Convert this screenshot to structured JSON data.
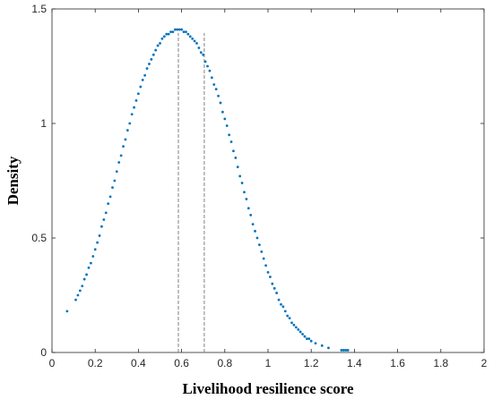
{
  "chart_data": {
    "type": "scatter",
    "title": "",
    "xlabel": "Livelihood resilience score",
    "ylabel": "Density",
    "xlim": [
      0,
      2
    ],
    "ylim": [
      0,
      1.5
    ],
    "xticks": [
      0,
      0.2,
      0.4,
      0.6,
      0.8,
      1,
      1.2,
      1.4,
      1.6,
      1.8,
      2
    ],
    "xtick_labels": [
      "0",
      "0.2",
      "0.4",
      "0.6",
      "0.8",
      "1",
      "1.2",
      "1.4",
      "1.6",
      "1.8",
      "2"
    ],
    "yticks": [
      0,
      0.5,
      1,
      1.5
    ],
    "ytick_labels": [
      "0",
      "0.5",
      "1",
      "1.5"
    ],
    "grid": false,
    "legend": "none",
    "marker_color": "#0072BD",
    "reference_lines": [
      {
        "x": 0.585,
        "style": "dashed",
        "color": "#808080"
      },
      {
        "x": 0.705,
        "style": "dashed",
        "color": "#808080"
      }
    ],
    "series": [
      {
        "x": [
          0.07,
          0.11,
          0.12,
          0.13,
          0.14,
          0.15,
          0.16,
          0.17,
          0.18,
          0.19,
          0.2,
          0.21,
          0.22,
          0.23,
          0.24,
          0.25,
          0.26,
          0.27,
          0.28,
          0.29,
          0.3,
          0.31,
          0.32,
          0.33,
          0.34,
          0.35,
          0.36,
          0.37,
          0.38,
          0.39,
          0.4,
          0.41,
          0.42,
          0.43,
          0.44,
          0.45,
          0.46,
          0.47,
          0.48,
          0.49,
          0.5,
          0.51,
          0.52,
          0.53,
          0.54,
          0.55,
          0.56,
          0.57,
          0.58,
          0.59,
          0.6,
          0.61,
          0.62,
          0.63,
          0.64,
          0.65,
          0.66,
          0.67,
          0.68,
          0.69,
          0.7,
          0.71,
          0.72,
          0.73,
          0.74,
          0.75,
          0.76,
          0.77,
          0.78,
          0.79,
          0.8,
          0.81,
          0.82,
          0.83,
          0.84,
          0.85,
          0.86,
          0.87,
          0.88,
          0.89,
          0.9,
          0.91,
          0.92,
          0.93,
          0.94,
          0.95,
          0.96,
          0.97,
          0.98,
          0.99,
          1.0,
          1.01,
          1.02,
          1.03,
          1.04,
          1.05,
          1.06,
          1.07,
          1.08,
          1.09,
          1.1,
          1.11,
          1.12,
          1.13,
          1.14,
          1.15,
          1.16,
          1.17,
          1.18,
          1.19,
          1.2,
          1.22,
          1.25,
          1.28,
          1.34,
          1.35,
          1.36,
          1.37
        ],
        "y": [
          0.18,
          0.23,
          0.25,
          0.27,
          0.29,
          0.32,
          0.34,
          0.37,
          0.39,
          0.42,
          0.45,
          0.48,
          0.51,
          0.55,
          0.58,
          0.61,
          0.65,
          0.68,
          0.72,
          0.75,
          0.79,
          0.83,
          0.86,
          0.9,
          0.93,
          0.97,
          1.0,
          1.04,
          1.07,
          1.1,
          1.13,
          1.16,
          1.19,
          1.21,
          1.24,
          1.26,
          1.28,
          1.3,
          1.32,
          1.34,
          1.35,
          1.37,
          1.38,
          1.39,
          1.39,
          1.4,
          1.4,
          1.41,
          1.41,
          1.41,
          1.41,
          1.4,
          1.4,
          1.39,
          1.38,
          1.37,
          1.36,
          1.35,
          1.33,
          1.31,
          1.3,
          1.27,
          1.25,
          1.23,
          1.2,
          1.17,
          1.15,
          1.12,
          1.09,
          1.05,
          1.02,
          0.99,
          0.95,
          0.92,
          0.88,
          0.85,
          0.81,
          0.77,
          0.74,
          0.7,
          0.67,
          0.63,
          0.6,
          0.56,
          0.53,
          0.5,
          0.47,
          0.44,
          0.41,
          0.38,
          0.35,
          0.33,
          0.3,
          0.28,
          0.26,
          0.23,
          0.21,
          0.2,
          0.18,
          0.16,
          0.15,
          0.13,
          0.12,
          0.11,
          0.1,
          0.09,
          0.08,
          0.07,
          0.06,
          0.06,
          0.05,
          0.04,
          0.03,
          0.02,
          0.01,
          0.01,
          0.01,
          0.01
        ]
      }
    ]
  }
}
